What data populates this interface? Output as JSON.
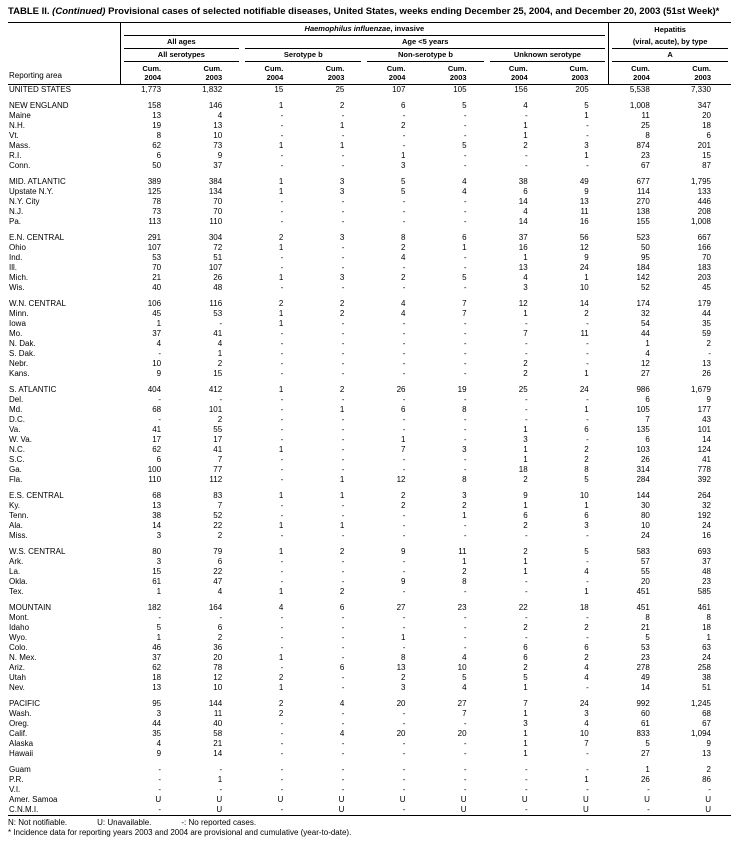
{
  "title": {
    "label": "TABLE II.",
    "continued": " (Continued) ",
    "rest": "Provisional cases of selected notifiable diseases, United States, weeks ending December 25, 2004, and December 20, 2003 (51st Week)*"
  },
  "header": {
    "reporting_area": "Reporting area",
    "hib_italic": "Haemophilus influenzae",
    "hib_rest": ", invasive",
    "hep_line1": "Hepatitis",
    "hep_line2": "(viral, acute), by type",
    "hep_sub": "A",
    "all_ages": "All ages",
    "age_under_5": "Age <5 years",
    "all_serotypes": "All serotypes",
    "serotype_b": "Serotype b",
    "non_serotype_b": "Non-serotype b",
    "unknown_serotype": "Unknown serotype",
    "cum": "Cum.",
    "y2004": "2004",
    "y2003": "2003"
  },
  "groups": [
    {
      "rows": [
        {
          "area": "UNITED STATES",
          "values": [
            "1,773",
            "1,832",
            "15",
            "25",
            "107",
            "105",
            "156",
            "205",
            "5,538",
            "7,330"
          ]
        }
      ]
    },
    {
      "rows": [
        {
          "area": "NEW ENGLAND",
          "values": [
            "158",
            "146",
            "1",
            "2",
            "6",
            "5",
            "4",
            "5",
            "1,008",
            "347"
          ]
        },
        {
          "area": "Maine",
          "values": [
            "13",
            "4",
            "-",
            "-",
            "-",
            "-",
            "-",
            "1",
            "11",
            "20"
          ]
        },
        {
          "area": "N.H.",
          "values": [
            "19",
            "13",
            "-",
            "1",
            "2",
            "-",
            "1",
            "-",
            "25",
            "18"
          ]
        },
        {
          "area": "Vt.",
          "values": [
            "8",
            "10",
            "-",
            "-",
            "-",
            "-",
            "1",
            "-",
            "8",
            "6"
          ]
        },
        {
          "area": "Mass.",
          "values": [
            "62",
            "73",
            "1",
            "1",
            "-",
            "5",
            "2",
            "3",
            "874",
            "201"
          ]
        },
        {
          "area": "R.I.",
          "values": [
            "6",
            "9",
            "-",
            "-",
            "1",
            "-",
            "-",
            "1",
            "23",
            "15"
          ]
        },
        {
          "area": "Conn.",
          "values": [
            "50",
            "37",
            "-",
            "-",
            "3",
            "-",
            "-",
            "-",
            "67",
            "87"
          ]
        }
      ]
    },
    {
      "rows": [
        {
          "area": "MID. ATLANTIC",
          "values": [
            "389",
            "384",
            "1",
            "3",
            "5",
            "4",
            "38",
            "49",
            "677",
            "1,795"
          ]
        },
        {
          "area": "Upstate N.Y.",
          "values": [
            "125",
            "134",
            "1",
            "3",
            "5",
            "4",
            "6",
            "9",
            "114",
            "133"
          ]
        },
        {
          "area": "N.Y. City",
          "values": [
            "78",
            "70",
            "-",
            "-",
            "-",
            "-",
            "14",
            "13",
            "270",
            "446"
          ]
        },
        {
          "area": "N.J.",
          "values": [
            "73",
            "70",
            "-",
            "-",
            "-",
            "-",
            "4",
            "11",
            "138",
            "208"
          ]
        },
        {
          "area": "Pa.",
          "values": [
            "113",
            "110",
            "-",
            "-",
            "-",
            "-",
            "14",
            "16",
            "155",
            "1,008"
          ]
        }
      ]
    },
    {
      "rows": [
        {
          "area": "E.N. CENTRAL",
          "values": [
            "291",
            "304",
            "2",
            "3",
            "8",
            "6",
            "37",
            "56",
            "523",
            "667"
          ]
        },
        {
          "area": "Ohio",
          "values": [
            "107",
            "72",
            "1",
            "-",
            "2",
            "1",
            "16",
            "12",
            "50",
            "166"
          ]
        },
        {
          "area": "Ind.",
          "values": [
            "53",
            "51",
            "-",
            "-",
            "4",
            "-",
            "1",
            "9",
            "95",
            "70"
          ]
        },
        {
          "area": "Ill.",
          "values": [
            "70",
            "107",
            "-",
            "-",
            "-",
            "-",
            "13",
            "24",
            "184",
            "183"
          ]
        },
        {
          "area": "Mich.",
          "values": [
            "21",
            "26",
            "1",
            "3",
            "2",
            "5",
            "4",
            "1",
            "142",
            "203"
          ]
        },
        {
          "area": "Wis.",
          "values": [
            "40",
            "48",
            "-",
            "-",
            "-",
            "-",
            "3",
            "10",
            "52",
            "45"
          ]
        }
      ]
    },
    {
      "rows": [
        {
          "area": "W.N. CENTRAL",
          "values": [
            "106",
            "116",
            "2",
            "2",
            "4",
            "7",
            "12",
            "14",
            "174",
            "179"
          ]
        },
        {
          "area": "Minn.",
          "values": [
            "45",
            "53",
            "1",
            "2",
            "4",
            "7",
            "1",
            "2",
            "32",
            "44"
          ]
        },
        {
          "area": "Iowa",
          "values": [
            "1",
            "-",
            "1",
            "-",
            "-",
            "-",
            "-",
            "-",
            "54",
            "35"
          ]
        },
        {
          "area": "Mo.",
          "values": [
            "37",
            "41",
            "-",
            "-",
            "-",
            "-",
            "7",
            "11",
            "44",
            "59"
          ]
        },
        {
          "area": "N. Dak.",
          "values": [
            "4",
            "4",
            "-",
            "-",
            "-",
            "-",
            "-",
            "-",
            "1",
            "2"
          ]
        },
        {
          "area": "S. Dak.",
          "values": [
            "-",
            "1",
            "-",
            "-",
            "-",
            "-",
            "-",
            "-",
            "4",
            "-"
          ]
        },
        {
          "area": "Nebr.",
          "values": [
            "10",
            "2",
            "-",
            "-",
            "-",
            "-",
            "2",
            "-",
            "12",
            "13"
          ]
        },
        {
          "area": "Kans.",
          "values": [
            "9",
            "15",
            "-",
            "-",
            "-",
            "-",
            "2",
            "1",
            "27",
            "26"
          ]
        }
      ]
    },
    {
      "rows": [
        {
          "area": "S. ATLANTIC",
          "values": [
            "404",
            "412",
            "1",
            "2",
            "26",
            "19",
            "25",
            "24",
            "986",
            "1,679"
          ]
        },
        {
          "area": "Del.",
          "values": [
            "-",
            "-",
            "-",
            "-",
            "-",
            "-",
            "-",
            "-",
            "6",
            "9"
          ]
        },
        {
          "area": "Md.",
          "values": [
            "68",
            "101",
            "-",
            "1",
            "6",
            "8",
            "-",
            "1",
            "105",
            "177"
          ]
        },
        {
          "area": "D.C.",
          "values": [
            "-",
            "2",
            "-",
            "-",
            "-",
            "-",
            "-",
            "-",
            "7",
            "43"
          ]
        },
        {
          "area": "Va.",
          "values": [
            "41",
            "55",
            "-",
            "-",
            "-",
            "-",
            "1",
            "6",
            "135",
            "101"
          ]
        },
        {
          "area": "W. Va.",
          "values": [
            "17",
            "17",
            "-",
            "-",
            "1",
            "-",
            "3",
            "-",
            "6",
            "14"
          ]
        },
        {
          "area": "N.C.",
          "values": [
            "62",
            "41",
            "1",
            "-",
            "7",
            "3",
            "1",
            "2",
            "103",
            "124"
          ]
        },
        {
          "area": "S.C.",
          "values": [
            "6",
            "7",
            "-",
            "-",
            "-",
            "-",
            "1",
            "2",
            "26",
            "41"
          ]
        },
        {
          "area": "Ga.",
          "values": [
            "100",
            "77",
            "-",
            "-",
            "-",
            "-",
            "18",
            "8",
            "314",
            "778"
          ]
        },
        {
          "area": "Fla.",
          "values": [
            "110",
            "112",
            "-",
            "1",
            "12",
            "8",
            "2",
            "5",
            "284",
            "392"
          ]
        }
      ]
    },
    {
      "rows": [
        {
          "area": "E.S. CENTRAL",
          "values": [
            "68",
            "83",
            "1",
            "1",
            "2",
            "3",
            "9",
            "10",
            "144",
            "264"
          ]
        },
        {
          "area": "Ky.",
          "values": [
            "13",
            "7",
            "-",
            "-",
            "2",
            "2",
            "1",
            "1",
            "30",
            "32"
          ]
        },
        {
          "area": "Tenn.",
          "values": [
            "38",
            "52",
            "-",
            "-",
            "-",
            "1",
            "6",
            "6",
            "80",
            "192"
          ]
        },
        {
          "area": "Ala.",
          "values": [
            "14",
            "22",
            "1",
            "1",
            "-",
            "-",
            "2",
            "3",
            "10",
            "24"
          ]
        },
        {
          "area": "Miss.",
          "values": [
            "3",
            "2",
            "-",
            "-",
            "-",
            "-",
            "-",
            "-",
            "24",
            "16"
          ]
        }
      ]
    },
    {
      "rows": [
        {
          "area": "W.S. CENTRAL",
          "values": [
            "80",
            "79",
            "1",
            "2",
            "9",
            "11",
            "2",
            "5",
            "583",
            "693"
          ]
        },
        {
          "area": "Ark.",
          "values": [
            "3",
            "6",
            "-",
            "-",
            "-",
            "1",
            "1",
            "-",
            "57",
            "37"
          ]
        },
        {
          "area": "La.",
          "values": [
            "15",
            "22",
            "-",
            "-",
            "-",
            "2",
            "1",
            "4",
            "55",
            "48"
          ]
        },
        {
          "area": "Okla.",
          "values": [
            "61",
            "47",
            "-",
            "-",
            "9",
            "8",
            "-",
            "-",
            "20",
            "23"
          ]
        },
        {
          "area": "Tex.",
          "values": [
            "1",
            "4",
            "1",
            "2",
            "-",
            "-",
            "-",
            "1",
            "451",
            "585"
          ]
        }
      ]
    },
    {
      "rows": [
        {
          "area": "MOUNTAIN",
          "values": [
            "182",
            "164",
            "4",
            "6",
            "27",
            "23",
            "22",
            "18",
            "451",
            "461"
          ]
        },
        {
          "area": "Mont.",
          "values": [
            "-",
            "-",
            "-",
            "-",
            "-",
            "-",
            "-",
            "-",
            "8",
            "8"
          ]
        },
        {
          "area": "Idaho",
          "values": [
            "5",
            "6",
            "-",
            "-",
            "-",
            "-",
            "2",
            "2",
            "21",
            "18"
          ]
        },
        {
          "area": "Wyo.",
          "values": [
            "1",
            "2",
            "-",
            "-",
            "1",
            "-",
            "-",
            "-",
            "5",
            "1"
          ]
        },
        {
          "area": "Colo.",
          "values": [
            "46",
            "36",
            "-",
            "-",
            "-",
            "-",
            "6",
            "6",
            "53",
            "63"
          ]
        },
        {
          "area": "N. Mex.",
          "values": [
            "37",
            "20",
            "1",
            "-",
            "8",
            "4",
            "6",
            "2",
            "23",
            "24"
          ]
        },
        {
          "area": "Ariz.",
          "values": [
            "62",
            "78",
            "-",
            "6",
            "13",
            "10",
            "2",
            "4",
            "278",
            "258"
          ]
        },
        {
          "area": "Utah",
          "values": [
            "18",
            "12",
            "2",
            "-",
            "2",
            "5",
            "5",
            "4",
            "49",
            "38"
          ]
        },
        {
          "area": "Nev.",
          "values": [
            "13",
            "10",
            "1",
            "-",
            "3",
            "4",
            "1",
            "-",
            "14",
            "51"
          ]
        }
      ]
    },
    {
      "rows": [
        {
          "area": "PACIFIC",
          "values": [
            "95",
            "144",
            "2",
            "4",
            "20",
            "27",
            "7",
            "24",
            "992",
            "1,245"
          ]
        },
        {
          "area": "Wash.",
          "values": [
            "3",
            "11",
            "2",
            "-",
            "-",
            "7",
            "1",
            "3",
            "60",
            "68"
          ]
        },
        {
          "area": "Oreg.",
          "values": [
            "44",
            "40",
            "-",
            "-",
            "-",
            "-",
            "3",
            "4",
            "61",
            "67"
          ]
        },
        {
          "area": "Calif.",
          "values": [
            "35",
            "58",
            "-",
            "4",
            "20",
            "20",
            "1",
            "10",
            "833",
            "1,094"
          ]
        },
        {
          "area": "Alaska",
          "values": [
            "4",
            "21",
            "-",
            "-",
            "-",
            "-",
            "1",
            "7",
            "5",
            "9"
          ]
        },
        {
          "area": "Hawaii",
          "values": [
            "9",
            "14",
            "-",
            "-",
            "-",
            "-",
            "1",
            "-",
            "27",
            "13"
          ]
        }
      ]
    },
    {
      "rows": [
        {
          "area": "Guam",
          "values": [
            "-",
            "-",
            "-",
            "-",
            "-",
            "-",
            "-",
            "-",
            "1",
            "2"
          ]
        },
        {
          "area": "P.R.",
          "values": [
            "-",
            "1",
            "-",
            "-",
            "-",
            "-",
            "-",
            "1",
            "26",
            "86"
          ]
        },
        {
          "area": "V.I.",
          "values": [
            "-",
            "-",
            "-",
            "-",
            "-",
            "-",
            "-",
            "-",
            "-",
            "-"
          ]
        },
        {
          "area": "Amer. Samoa",
          "values": [
            "U",
            "U",
            "U",
            "U",
            "U",
            "U",
            "U",
            "U",
            "U",
            "U"
          ]
        },
        {
          "area": "C.N.M.I.",
          "values": [
            "-",
            "U",
            "-",
            "U",
            "-",
            "U",
            "-",
            "U",
            "-",
            "U"
          ]
        }
      ]
    }
  ],
  "footnotes": {
    "n": "N: Not notifiable.",
    "u": "U: Unavailable.",
    "dash": "-: No reported cases.",
    "asterisk": "* Incidence data for reporting years 2003 and 2004 are provisional and cumulative (year-to-date)."
  }
}
